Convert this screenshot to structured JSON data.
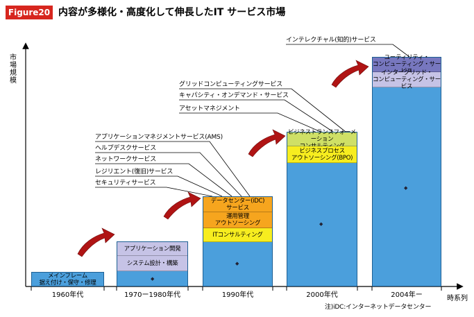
{
  "figure": {
    "badge": "Figure20",
    "title": "内容が多様化・高度化して伸長したIT サービス市場"
  },
  "axes": {
    "y_label": "市場規模",
    "x_label": "時系列"
  },
  "eras": [
    {
      "label": "1960年代",
      "blocks": [
        "メインフレーム",
        "据え付け・保守・修理"
      ]
    },
    {
      "label": "1970ー1980年代",
      "blocks": [
        "アプリケーション開発",
        "システム設計・構築"
      ]
    },
    {
      "label": "1990年代",
      "blocks": [
        "データセンター(iDC)",
        "サービス",
        "運用管理",
        "アウトソーシング",
        "ITコンサルティング"
      ]
    },
    {
      "label": "2000年代",
      "blocks": [
        "ビジネストランスフォーメーション",
        "コンサルティング",
        "ビジネスプロセス",
        "アウトソーシング(BPO)"
      ]
    },
    {
      "label": "2004年ー",
      "blocks": [
        "ユーティリティ・",
        "コンピューティング・サービス",
        "インターグリッド・",
        "コンピューティング・サービス"
      ]
    }
  ],
  "callouts_1990": [
    "アプリケーションマネジメントサービス(AMS)",
    "ヘルプデスクサービス",
    "ネットワークサービス",
    "レジリエント(復旧)サービス",
    "セキュリティサービス"
  ],
  "callouts_2000": [
    "グリッドコンピューティングサービス",
    "キャパシティ・オンデマンド・サービス",
    "アセットマネジメント"
  ],
  "callouts_2004": [
    "インテレクチャル(知的)サービス"
  ],
  "note": "注)iDC:インターネットデータセンター",
  "colors": {
    "badge": "#d7261e",
    "bar": "#4b9fdc",
    "lavender": "#c6c3e6",
    "orange": "#f6a51e",
    "yellow": "#f7ed1f",
    "lime": "#cfe066",
    "purple": "#7777bf",
    "arrow": "#b01414"
  }
}
